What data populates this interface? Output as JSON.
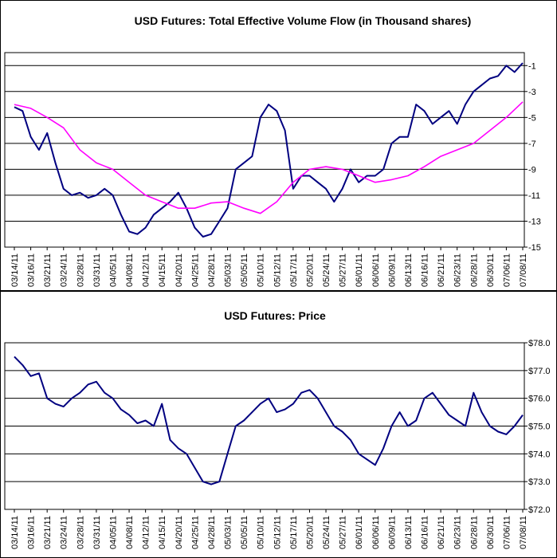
{
  "colors": {
    "background": "#ffffff",
    "gridline": "#000000",
    "series_line": "#000080",
    "moving_average": "#ff00ff"
  },
  "chart_data": [
    {
      "type": "line",
      "title": "USD Futures: Total Effective Volume Flow (in Thousand shares)",
      "ylim": [
        -15,
        0
      ],
      "yticks": [
        "-1",
        "-3",
        "-5",
        "-7",
        "-9",
        "-11",
        "-13",
        "-15"
      ],
      "ytick_values": [
        -1,
        -3,
        -5,
        -7,
        -9,
        -11,
        -13,
        -15
      ],
      "x_axis_position": "bottom",
      "y_axis_position": "right",
      "xticks": [
        "03/14/11",
        "03/16/11",
        "03/21/11",
        "03/24/11",
        "03/28/11",
        "03/31/11",
        "04/05/11",
        "04/08/11",
        "04/12/11",
        "04/15/11",
        "04/20/11",
        "04/25/11",
        "04/28/11",
        "05/03/11",
        "05/05/11",
        "05/10/11",
        "05/12/11",
        "05/17/11",
        "05/20/11",
        "05/24/11",
        "05/27/11",
        "06/01/11",
        "06/06/11",
        "06/09/11",
        "06/13/11",
        "06/16/11",
        "06/21/11",
        "06/23/11",
        "06/28/11",
        "06/30/11",
        "07/06/11",
        "07/08/11"
      ],
      "grid": true,
      "series": [
        {
          "color": "#000080",
          "x": [
            0,
            0.5,
            1,
            1.5,
            2,
            2.5,
            3,
            3.5,
            4,
            4.5,
            5,
            5.5,
            6,
            6.5,
            7,
            7.5,
            8,
            8.5,
            9,
            9.5,
            10,
            10.5,
            11,
            11.5,
            12,
            12.5,
            13,
            13.5,
            14,
            14.5,
            15,
            15.5,
            16,
            16.5,
            17,
            17.5,
            18,
            18.5,
            19,
            19.5,
            20,
            20.5,
            21,
            21.5,
            22,
            22.5,
            23,
            23.5,
            24,
            24.5,
            25,
            25.5,
            26,
            26.5,
            27,
            27.5,
            28,
            28.5,
            29,
            29.5,
            30,
            30.5,
            31
          ],
          "values": [
            -4.2,
            -4.5,
            -6.5,
            -7.5,
            -6.2,
            -8.5,
            -10.5,
            -11.0,
            -10.8,
            -11.2,
            -11.0,
            -10.5,
            -11.0,
            -12.5,
            -13.8,
            -14.0,
            -13.5,
            -12.5,
            -12.0,
            -11.5,
            -10.8,
            -12.0,
            -13.5,
            -14.2,
            -14.0,
            -13.0,
            -12.0,
            -9.0,
            -8.5,
            -8.0,
            -5.0,
            -4.0,
            -4.5,
            -6.0,
            -10.5,
            -9.5,
            -9.5,
            -10.0,
            -10.5,
            -11.5,
            -10.5,
            -9.0,
            -10.0,
            -9.5,
            -9.5,
            -9.0,
            -7.0,
            -6.5,
            -6.5,
            -4.0,
            -4.5,
            -5.5,
            -5.0,
            -4.5,
            -5.5,
            -4.0,
            -3.0,
            -2.5,
            -2.0,
            -1.8,
            -1.0,
            -1.5,
            -0.8
          ]
        },
        {
          "color": "#ff00ff",
          "x": [
            0,
            1,
            2,
            3,
            4,
            5,
            6,
            7,
            8,
            9,
            10,
            11,
            12,
            13,
            14,
            15,
            16,
            17,
            18,
            19,
            20,
            21,
            22,
            23,
            24,
            25,
            26,
            27,
            28,
            29,
            30,
            31
          ],
          "values": [
            -4.0,
            -4.3,
            -5.0,
            -5.8,
            -7.5,
            -8.5,
            -9.0,
            -10.0,
            -11.0,
            -11.5,
            -12.0,
            -12.0,
            -11.6,
            -11.5,
            -12.0,
            -12.4,
            -11.5,
            -10.0,
            -9.0,
            -8.8,
            -9.0,
            -9.5,
            -10.0,
            -9.8,
            -9.5,
            -8.8,
            -8.0,
            -7.5,
            -7.0,
            -6.0,
            -5.0,
            -3.8
          ]
        }
      ]
    },
    {
      "type": "line",
      "title": "USD Futures: Price",
      "ylim": [
        72.0,
        78.0
      ],
      "yticks": [
        "$78.0",
        "$77.0",
        "$76.0",
        "$75.0",
        "$74.0",
        "$73.0",
        "$72.0"
      ],
      "ytick_values": [
        78,
        77,
        76,
        75,
        74,
        73,
        72
      ],
      "x_axis_position": "bottom",
      "y_axis_position": "right",
      "xticks": [
        "03/14/11",
        "03/16/11",
        "03/21/11",
        "03/24/11",
        "03/28/11",
        "03/31/11",
        "04/05/11",
        "04/08/11",
        "04/12/11",
        "04/15/11",
        "04/20/11",
        "04/25/11",
        "04/28/11",
        "05/03/11",
        "05/05/11",
        "05/10/11",
        "05/12/11",
        "05/17/11",
        "05/20/11",
        "05/24/11",
        "05/27/11",
        "06/01/11",
        "06/06/11",
        "06/09/11",
        "06/13/11",
        "06/16/11",
        "06/21/11",
        "06/23/11",
        "06/28/11",
        "06/30/11",
        "07/06/11",
        "07/08/11"
      ],
      "grid": true,
      "series": [
        {
          "color": "#000080",
          "x": [
            0,
            0.5,
            1,
            1.5,
            2,
            2.5,
            3,
            3.5,
            4,
            4.5,
            5,
            5.5,
            6,
            6.5,
            7,
            7.5,
            8,
            8.5,
            9,
            9.5,
            10,
            10.5,
            11,
            11.5,
            12,
            12.5,
            13,
            13.5,
            14,
            14.5,
            15,
            15.5,
            16,
            16.5,
            17,
            17.5,
            18,
            18.5,
            19,
            19.5,
            20,
            20.5,
            21,
            21.5,
            22,
            22.5,
            23,
            23.5,
            24,
            24.5,
            25,
            25.5,
            26,
            26.5,
            27,
            27.5,
            28,
            28.5,
            29,
            29.5,
            30,
            30.5,
            31
          ],
          "values": [
            77.5,
            77.2,
            76.8,
            76.9,
            76.0,
            75.8,
            75.7,
            76.0,
            76.2,
            76.5,
            76.6,
            76.2,
            76.0,
            75.6,
            75.4,
            75.1,
            75.2,
            75.0,
            75.8,
            74.5,
            74.2,
            74.0,
            73.5,
            73.0,
            72.9,
            73.0,
            74.0,
            75.0,
            75.2,
            75.5,
            75.8,
            76.0,
            75.5,
            75.6,
            75.8,
            76.2,
            76.3,
            76.0,
            75.5,
            75.0,
            74.8,
            74.5,
            74.0,
            73.8,
            73.6,
            74.2,
            75.0,
            75.5,
            75.0,
            75.2,
            76.0,
            76.2,
            75.8,
            75.4,
            75.2,
            75.0,
            76.2,
            75.5,
            75.0,
            74.8,
            74.7,
            75.0,
            75.4
          ]
        }
      ]
    }
  ]
}
